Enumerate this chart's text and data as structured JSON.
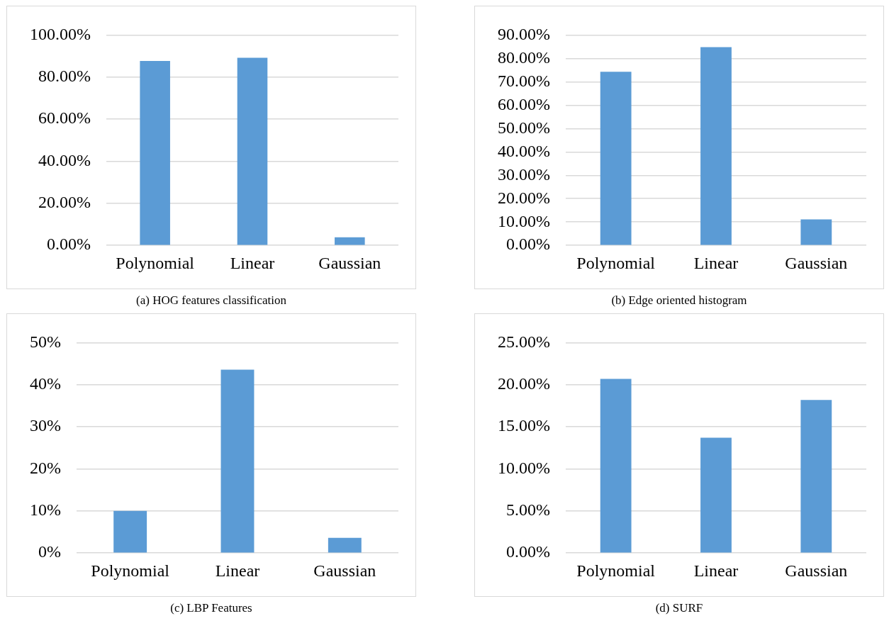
{
  "chart_data": [
    {
      "type": "bar",
      "title": "(a) HOG features classification",
      "categories": [
        "Polynomial",
        "Linear",
        "Gaussian"
      ],
      "values": [
        87.7,
        89.2,
        3.9
      ],
      "color": "#5b9bd5",
      "ylim": [
        0,
        100
      ],
      "yticks": [
        {
          "value": 0,
          "label": "0.00%"
        },
        {
          "value": 20,
          "label": "20.00%"
        },
        {
          "value": 40,
          "label": "40.00%"
        },
        {
          "value": 60,
          "label": "60.00%"
        },
        {
          "value": 80,
          "label": "80.00%"
        },
        {
          "value": 100,
          "label": "100.00%"
        }
      ],
      "grid": "y",
      "legend": false
    },
    {
      "type": "bar",
      "title": "(b) Edge oriented histogram",
      "categories": [
        "Polynomial",
        "Linear",
        "Gaussian"
      ],
      "values": [
        74.3,
        84.8,
        11.1
      ],
      "color": "#5b9bd5",
      "ylim": [
        0,
        90
      ],
      "yticks": [
        {
          "value": 0,
          "label": "0.00%"
        },
        {
          "value": 10,
          "label": "10.00%"
        },
        {
          "value": 20,
          "label": "20.00%"
        },
        {
          "value": 30,
          "label": "30.00%"
        },
        {
          "value": 40,
          "label": "40.00%"
        },
        {
          "value": 50,
          "label": "50.00%"
        },
        {
          "value": 60,
          "label": "60.00%"
        },
        {
          "value": 70,
          "label": "70.00%"
        },
        {
          "value": 80,
          "label": "80.00%"
        },
        {
          "value": 90,
          "label": "90.00%"
        }
      ],
      "grid": "y",
      "legend": false
    },
    {
      "type": "bar",
      "title": "(c) LBP Features",
      "categories": [
        "Polynomial",
        "Linear",
        "Gaussian"
      ],
      "values": [
        10,
        43.6,
        3.6
      ],
      "color": "#5b9bd5",
      "ylim": [
        0,
        50
      ],
      "yticks": [
        {
          "value": 0,
          "label": "0%"
        },
        {
          "value": 10,
          "label": "10%"
        },
        {
          "value": 20,
          "label": "20%"
        },
        {
          "value": 30,
          "label": "30%"
        },
        {
          "value": 40,
          "label": "40%"
        },
        {
          "value": 50,
          "label": "50%"
        }
      ],
      "grid": "y",
      "legend": false
    },
    {
      "type": "bar",
      "title": "(d) SURF",
      "categories": [
        "Polynomial",
        "Linear",
        "Gaussian"
      ],
      "values": [
        20.7,
        13.7,
        18.2
      ],
      "color": "#5b9bd5",
      "ylim": [
        0,
        25
      ],
      "yticks": [
        {
          "value": 0,
          "label": "0.00%"
        },
        {
          "value": 5,
          "label": "5.00%"
        },
        {
          "value": 10,
          "label": "10.00%"
        },
        {
          "value": 15,
          "label": "15.00%"
        },
        {
          "value": 20,
          "label": "20.00%"
        },
        {
          "value": 25,
          "label": "25.00%"
        }
      ],
      "grid": "y",
      "legend": false
    }
  ]
}
